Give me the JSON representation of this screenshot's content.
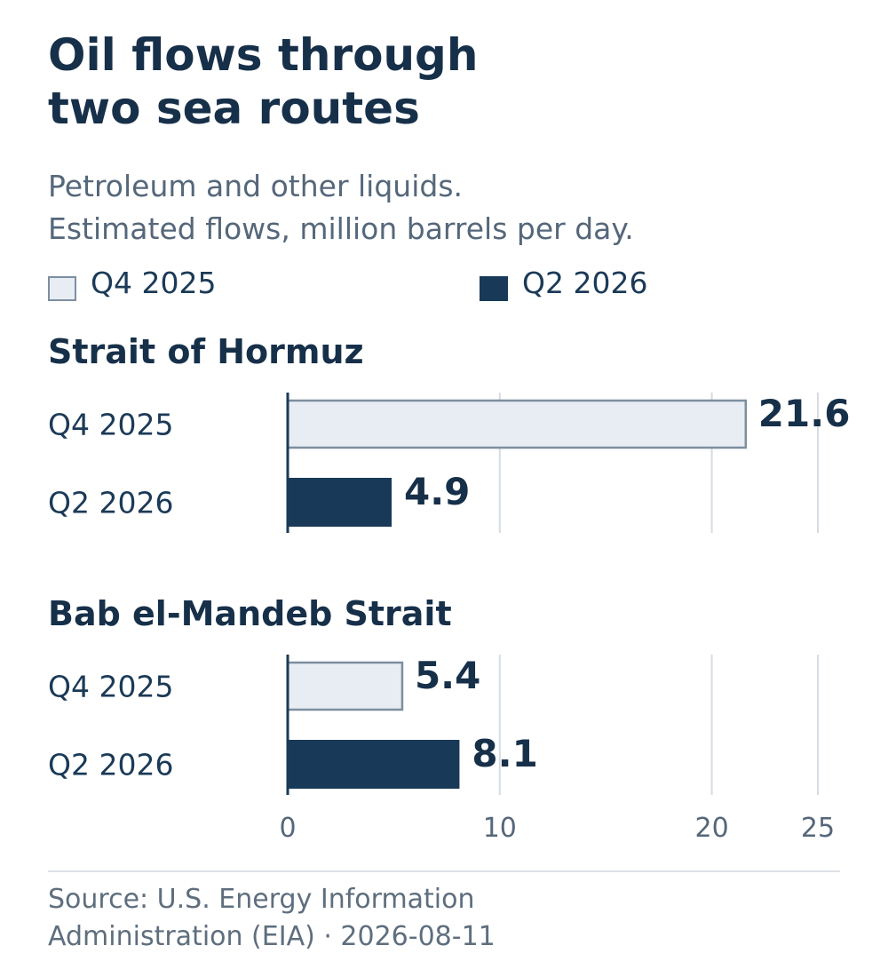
{
  "header": {
    "title": "Oil flows through two sea routes",
    "subtitle_line1": "Petroleum and other liquids.",
    "subtitle_line2": "Estimated flows, million barrels per day."
  },
  "legend": {
    "items": [
      {
        "label": "Q4 2025",
        "color": "#e7edf3",
        "border": "#7d8ea0"
      },
      {
        "label": "Q2 2026",
        "color": "#183a58",
        "border": "#183a58"
      }
    ]
  },
  "footer": {
    "source_line1": "Source: U.S. Energy Information",
    "source_line2": "Administration (EIA) · 2026-08-11"
  },
  "chart_data": {
    "type": "bar",
    "orientation": "horizontal",
    "xlim": [
      0,
      25
    ],
    "xticks": [
      0,
      10,
      20,
      25
    ],
    "grid": true,
    "series": [
      {
        "name": "Q4 2025",
        "color": "#e7edf3",
        "border": "#7d8ea0"
      },
      {
        "name": "Q2 2026",
        "color": "#183a58",
        "border": "#183a58"
      }
    ],
    "groups": [
      {
        "title": "Strait of Hormuz",
        "bars": [
          {
            "category": "Q4 2025",
            "value": 21.6,
            "label": "21.6"
          },
          {
            "category": "Q2 2026",
            "value": 4.9,
            "label": "4.9"
          }
        ]
      },
      {
        "title": "Bab el-Mandeb Strait",
        "bars": [
          {
            "category": "Q4 2025",
            "value": 5.4,
            "label": "5.4"
          },
          {
            "category": "Q2 2026",
            "value": 8.1,
            "label": "8.1"
          }
        ]
      }
    ]
  }
}
